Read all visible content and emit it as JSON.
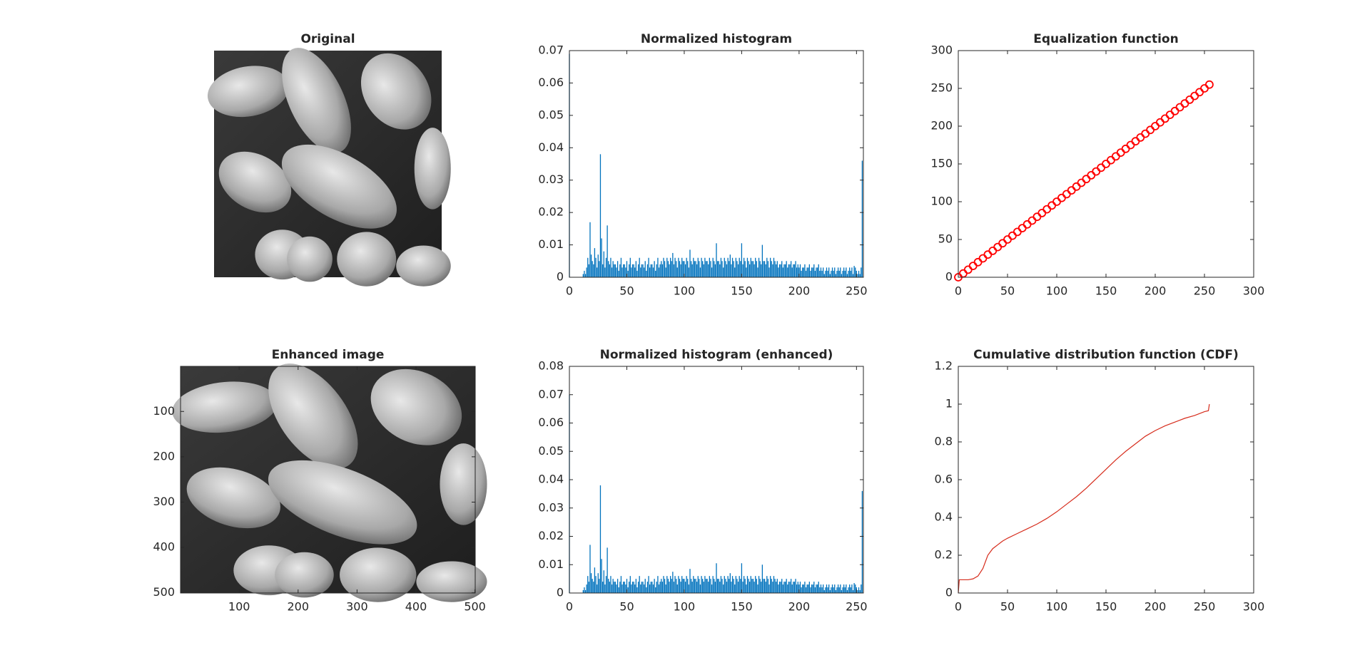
{
  "chart_data": [
    {
      "type": "image",
      "title": "Original"
    },
    {
      "type": "bar",
      "title": "Normalized histogram",
      "color": "#0072bd",
      "x": [
        0,
        1,
        2,
        3,
        4,
        5,
        6,
        7,
        8,
        9,
        10,
        11,
        12,
        13,
        14,
        15,
        16,
        17,
        18,
        19,
        20,
        21,
        22,
        23,
        24,
        25,
        26,
        27,
        28,
        29,
        30,
        31,
        32,
        33,
        34,
        35,
        36,
        37,
        38,
        39,
        40,
        41,
        42,
        43,
        44,
        45,
        46,
        47,
        48,
        49,
        50,
        51,
        52,
        53,
        54,
        55,
        56,
        57,
        58,
        59,
        60,
        61,
        62,
        63,
        64,
        65,
        66,
        67,
        68,
        69,
        70,
        71,
        72,
        73,
        74,
        75,
        76,
        77,
        78,
        79,
        80,
        81,
        82,
        83,
        84,
        85,
        86,
        87,
        88,
        89,
        90,
        91,
        92,
        93,
        94,
        95,
        96,
        97,
        98,
        99,
        100,
        101,
        102,
        103,
        104,
        105,
        106,
        107,
        108,
        109,
        110,
        111,
        112,
        113,
        114,
        115,
        116,
        117,
        118,
        119,
        120,
        121,
        122,
        123,
        124,
        125,
        126,
        127,
        128,
        129,
        130,
        131,
        132,
        133,
        134,
        135,
        136,
        137,
        138,
        139,
        140,
        141,
        142,
        143,
        144,
        145,
        146,
        147,
        148,
        149,
        150,
        151,
        152,
        153,
        154,
        155,
        156,
        157,
        158,
        159,
        160,
        161,
        162,
        163,
        164,
        165,
        166,
        167,
        168,
        169,
        170,
        171,
        172,
        173,
        174,
        175,
        176,
        177,
        178,
        179,
        180,
        181,
        182,
        183,
        184,
        185,
        186,
        187,
        188,
        189,
        190,
        191,
        192,
        193,
        194,
        195,
        196,
        197,
        198,
        199,
        200,
        201,
        202,
        203,
        204,
        205,
        206,
        207,
        208,
        209,
        210,
        211,
        212,
        213,
        214,
        215,
        216,
        217,
        218,
        219,
        220,
        221,
        222,
        223,
        224,
        225,
        226,
        227,
        228,
        229,
        230,
        231,
        232,
        233,
        234,
        235,
        236,
        237,
        238,
        239,
        240,
        241,
        242,
        243,
        244,
        245,
        246,
        247,
        248,
        249,
        250,
        251,
        252,
        253,
        254,
        255
      ],
      "values": [
        0.069,
        0,
        0,
        0,
        0,
        0,
        0,
        0,
        0,
        0,
        0,
        0,
        0.001,
        0.002,
        0.001,
        0.003,
        0.006,
        0.004,
        0.017,
        0.007,
        0.005,
        0.004,
        0.009,
        0.006,
        0.003,
        0.007,
        0.005,
        0.038,
        0.012,
        0.004,
        0.008,
        0.003,
        0.006,
        0.016,
        0.005,
        0.004,
        0.006,
        0.003,
        0.005,
        0.004,
        0.004,
        0.003,
        0.005,
        0.002,
        0.004,
        0.006,
        0.003,
        0.004,
        0.004,
        0.003,
        0.005,
        0.002,
        0.004,
        0.006,
        0.003,
        0.004,
        0.004,
        0.003,
        0.005,
        0.002,
        0.004,
        0.006,
        0.003,
        0.004,
        0.004,
        0.003,
        0.005,
        0.002,
        0.004,
        0.006,
        0.003,
        0.004,
        0.004,
        0.003,
        0.005,
        0.002,
        0.004,
        0.006,
        0.003,
        0.004,
        0.005,
        0.004,
        0.006,
        0.005,
        0.003,
        0.006,
        0.005,
        0.004,
        0.006,
        0.005,
        0.0075,
        0.004,
        0.006,
        0.005,
        0.003,
        0.006,
        0.005,
        0.004,
        0.006,
        0.005,
        0.005,
        0.004,
        0.006,
        0.005,
        0.003,
        0.0085,
        0.005,
        0.004,
        0.006,
        0.005,
        0.005,
        0.004,
        0.006,
        0.005,
        0.003,
        0.006,
        0.005,
        0.004,
        0.006,
        0.005,
        0.005,
        0.004,
        0.006,
        0.005,
        0.003,
        0.006,
        0.005,
        0.004,
        0.0105,
        0.005,
        0.005,
        0.004,
        0.006,
        0.005,
        0.003,
        0.006,
        0.005,
        0.004,
        0.006,
        0.005,
        0.007,
        0.004,
        0.006,
        0.005,
        0.003,
        0.006,
        0.005,
        0.004,
        0.006,
        0.005,
        0.0105,
        0.004,
        0.006,
        0.005,
        0.003,
        0.006,
        0.005,
        0.004,
        0.006,
        0.005,
        0.005,
        0.004,
        0.006,
        0.005,
        0.003,
        0.006,
        0.005,
        0.004,
        0.01,
        0.005,
        0.005,
        0.004,
        0.006,
        0.005,
        0.003,
        0.006,
        0.005,
        0.004,
        0.006,
        0.005,
        0.004,
        0.005,
        0.003,
        0.004,
        0.004,
        0.005,
        0.003,
        0.004,
        0.004,
        0.005,
        0.003,
        0.004,
        0.004,
        0.005,
        0.003,
        0.004,
        0.004,
        0.005,
        0.003,
        0.004,
        0.003,
        0.004,
        0.002,
        0.003,
        0.003,
        0.004,
        0.002,
        0.003,
        0.003,
        0.004,
        0.002,
        0.003,
        0.003,
        0.004,
        0.002,
        0.003,
        0.003,
        0.004,
        0.002,
        0.003,
        0.002,
        0.003,
        0.001,
        0.002,
        0.003,
        0.002,
        0.003,
        0.001,
        0.002,
        0.003,
        0.002,
        0.003,
        0.001,
        0.002,
        0.003,
        0.002,
        0.003,
        0.001,
        0.002,
        0.003,
        0.002,
        0.003,
        0.001,
        0.002,
        0.003,
        0.002,
        0.003,
        0.001,
        0.0035,
        0.003,
        0.002,
        0.001,
        0.002,
        0.001,
        0.003,
        0.036
      ],
      "xlim": [
        0,
        256
      ],
      "xticks": [
        0,
        50,
        100,
        150,
        200,
        250
      ],
      "ylim": [
        0,
        0.07
      ],
      "yticks": [
        0,
        0.01,
        0.02,
        0.03,
        0.04,
        0.05,
        0.06,
        0.07
      ]
    },
    {
      "type": "scatter",
      "title": "Equalization function",
      "color": "#ff0000",
      "x": [
        0,
        5,
        10,
        15,
        20,
        25,
        30,
        35,
        40,
        45,
        50,
        55,
        60,
        65,
        70,
        75,
        80,
        85,
        90,
        95,
        100,
        105,
        110,
        115,
        120,
        125,
        130,
        135,
        140,
        145,
        150,
        155,
        160,
        165,
        170,
        175,
        180,
        185,
        190,
        195,
        200,
        205,
        210,
        215,
        220,
        225,
        230,
        235,
        240,
        245,
        250,
        255
      ],
      "values": [
        0,
        5,
        10,
        15,
        20,
        25,
        30,
        35,
        40,
        45,
        50,
        55,
        60,
        65,
        70,
        75,
        80,
        85,
        90,
        95,
        100,
        105,
        110,
        115,
        120,
        125,
        130,
        135,
        140,
        145,
        150,
        155,
        160,
        165,
        170,
        175,
        180,
        185,
        190,
        195,
        200,
        205,
        210,
        215,
        220,
        225,
        230,
        235,
        240,
        245,
        250,
        255
      ],
      "xlim": [
        0,
        300
      ],
      "xticks": [
        0,
        50,
        100,
        150,
        200,
        250,
        300
      ],
      "ylim": [
        0,
        300
      ],
      "yticks": [
        0,
        50,
        100,
        150,
        200,
        250,
        300
      ]
    },
    {
      "type": "image",
      "title": "Enhanced image",
      "y_reversed": true,
      "xlim": [
        0.5,
        500.5
      ],
      "xticks": [
        100,
        200,
        300,
        400,
        500
      ],
      "ylim": [
        0.5,
        500.5
      ],
      "yticks": [
        100,
        200,
        300,
        400,
        500
      ]
    },
    {
      "type": "bar",
      "title": "Normalized histogram (enhanced)",
      "color": "#0072bd",
      "x": [
        0,
        1,
        2,
        3,
        4,
        5,
        6,
        7,
        8,
        9,
        10,
        11,
        12,
        13,
        14,
        15,
        16,
        17,
        18,
        19,
        20,
        21,
        22,
        23,
        24,
        25,
        26,
        27,
        28,
        29,
        30,
        31,
        32,
        33,
        34,
        35,
        36,
        37,
        38,
        39,
        40,
        41,
        42,
        43,
        44,
        45,
        46,
        47,
        48,
        49,
        50,
        51,
        52,
        53,
        54,
        55,
        56,
        57,
        58,
        59,
        60,
        61,
        62,
        63,
        64,
        65,
        66,
        67,
        68,
        69,
        70,
        71,
        72,
        73,
        74,
        75,
        76,
        77,
        78,
        79,
        80,
        81,
        82,
        83,
        84,
        85,
        86,
        87,
        88,
        89,
        90,
        91,
        92,
        93,
        94,
        95,
        96,
        97,
        98,
        99,
        100,
        101,
        102,
        103,
        104,
        105,
        106,
        107,
        108,
        109,
        110,
        111,
        112,
        113,
        114,
        115,
        116,
        117,
        118,
        119,
        120,
        121,
        122,
        123,
        124,
        125,
        126,
        127,
        128,
        129,
        130,
        131,
        132,
        133,
        134,
        135,
        136,
        137,
        138,
        139,
        140,
        141,
        142,
        143,
        144,
        145,
        146,
        147,
        148,
        149,
        150,
        151,
        152,
        153,
        154,
        155,
        156,
        157,
        158,
        159,
        160,
        161,
        162,
        163,
        164,
        165,
        166,
        167,
        168,
        169,
        170,
        171,
        172,
        173,
        174,
        175,
        176,
        177,
        178,
        179,
        180,
        181,
        182,
        183,
        184,
        185,
        186,
        187,
        188,
        189,
        190,
        191,
        192,
        193,
        194,
        195,
        196,
        197,
        198,
        199,
        200,
        201,
        202,
        203,
        204,
        205,
        206,
        207,
        208,
        209,
        210,
        211,
        212,
        213,
        214,
        215,
        216,
        217,
        218,
        219,
        220,
        221,
        222,
        223,
        224,
        225,
        226,
        227,
        228,
        229,
        230,
        231,
        232,
        233,
        234,
        235,
        236,
        237,
        238,
        239,
        240,
        241,
        242,
        243,
        244,
        245,
        246,
        247,
        248,
        249,
        250,
        251,
        252,
        253,
        254,
        255
      ],
      "values": [
        0.07,
        0,
        0,
        0,
        0,
        0,
        0,
        0,
        0,
        0,
        0,
        0,
        0.001,
        0.002,
        0.001,
        0.003,
        0.006,
        0.004,
        0.017,
        0.007,
        0.005,
        0.004,
        0.009,
        0.006,
        0.003,
        0.007,
        0.005,
        0.038,
        0.012,
        0.004,
        0.008,
        0.003,
        0.006,
        0.016,
        0.005,
        0.004,
        0.006,
        0.003,
        0.005,
        0.004,
        0.004,
        0.003,
        0.005,
        0.002,
        0.004,
        0.006,
        0.003,
        0.004,
        0.004,
        0.003,
        0.005,
        0.002,
        0.004,
        0.006,
        0.003,
        0.004,
        0.004,
        0.003,
        0.005,
        0.002,
        0.004,
        0.006,
        0.003,
        0.004,
        0.004,
        0.003,
        0.005,
        0.002,
        0.004,
        0.006,
        0.003,
        0.004,
        0.004,
        0.003,
        0.005,
        0.002,
        0.004,
        0.006,
        0.003,
        0.004,
        0.005,
        0.004,
        0.006,
        0.005,
        0.003,
        0.006,
        0.005,
        0.004,
        0.006,
        0.005,
        0.0075,
        0.004,
        0.006,
        0.005,
        0.003,
        0.006,
        0.005,
        0.004,
        0.006,
        0.005,
        0.005,
        0.004,
        0.006,
        0.005,
        0.003,
        0.0085,
        0.005,
        0.004,
        0.006,
        0.005,
        0.005,
        0.004,
        0.006,
        0.005,
        0.003,
        0.006,
        0.005,
        0.004,
        0.006,
        0.005,
        0.005,
        0.004,
        0.006,
        0.005,
        0.003,
        0.006,
        0.005,
        0.004,
        0.0105,
        0.005,
        0.005,
        0.004,
        0.006,
        0.005,
        0.003,
        0.006,
        0.005,
        0.004,
        0.006,
        0.005,
        0.007,
        0.004,
        0.006,
        0.005,
        0.003,
        0.006,
        0.005,
        0.004,
        0.006,
        0.005,
        0.0105,
        0.004,
        0.006,
        0.005,
        0.003,
        0.006,
        0.005,
        0.004,
        0.006,
        0.005,
        0.005,
        0.004,
        0.006,
        0.005,
        0.003,
        0.006,
        0.005,
        0.004,
        0.01,
        0.005,
        0.005,
        0.004,
        0.006,
        0.005,
        0.003,
        0.006,
        0.005,
        0.004,
        0.006,
        0.005,
        0.004,
        0.005,
        0.003,
        0.004,
        0.004,
        0.005,
        0.003,
        0.004,
        0.004,
        0.005,
        0.003,
        0.004,
        0.004,
        0.005,
        0.003,
        0.004,
        0.004,
        0.005,
        0.003,
        0.004,
        0.003,
        0.004,
        0.002,
        0.003,
        0.003,
        0.004,
        0.002,
        0.003,
        0.003,
        0.004,
        0.002,
        0.003,
        0.003,
        0.004,
        0.002,
        0.003,
        0.003,
        0.004,
        0.002,
        0.003,
        0.002,
        0.003,
        0.001,
        0.002,
        0.003,
        0.002,
        0.003,
        0.001,
        0.002,
        0.003,
        0.002,
        0.003,
        0.001,
        0.002,
        0.003,
        0.002,
        0.003,
        0.001,
        0.002,
        0.003,
        0.002,
        0.003,
        0.001,
        0.002,
        0.003,
        0.002,
        0.003,
        0.001,
        0.0035,
        0.003,
        0.002,
        0.001,
        0.002,
        0.001,
        0.003,
        0.036
      ],
      "xlim": [
        0,
        256
      ],
      "xticks": [
        0,
        50,
        100,
        150,
        200,
        250
      ],
      "ylim": [
        0,
        0.08
      ],
      "yticks": [
        0,
        0.01,
        0.02,
        0.03,
        0.04,
        0.05,
        0.06,
        0.07,
        0.08
      ]
    },
    {
      "type": "line",
      "title": "Cumulative distribution function (CDF)",
      "color": "#d62c1c",
      "x": [
        0,
        1,
        5,
        10,
        15,
        20,
        25,
        30,
        35,
        40,
        45,
        50,
        60,
        70,
        80,
        90,
        100,
        110,
        120,
        130,
        140,
        150,
        160,
        170,
        180,
        190,
        200,
        210,
        220,
        230,
        240,
        250,
        254,
        255
      ],
      "values": [
        0,
        0.07,
        0.07,
        0.07,
        0.075,
        0.09,
        0.13,
        0.2,
        0.235,
        0.255,
        0.275,
        0.29,
        0.315,
        0.34,
        0.365,
        0.395,
        0.43,
        0.47,
        0.51,
        0.555,
        0.605,
        0.655,
        0.705,
        0.75,
        0.79,
        0.83,
        0.86,
        0.885,
        0.905,
        0.925,
        0.94,
        0.96,
        0.965,
        1.0
      ],
      "xlim": [
        0,
        300
      ],
      "xticks": [
        0,
        50,
        100,
        150,
        200,
        250,
        300
      ],
      "ylim": [
        0,
        1.2
      ],
      "yticks": [
        0,
        0.2,
        0.4,
        0.6,
        0.8,
        1,
        1.2
      ]
    }
  ]
}
